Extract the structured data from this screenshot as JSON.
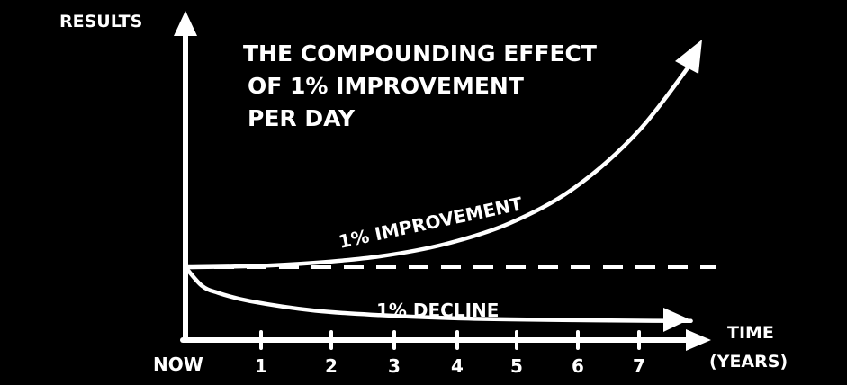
{
  "chart_data": {
    "type": "line",
    "title": "THE COMPOUNDING EFFECT OF 1% IMPROVEMENT PER DAY",
    "title_lines": [
      "THE COMPOUNDING EFFECT",
      "OF 1% IMPROVEMENT",
      "PER DAY"
    ],
    "ylabel": "RESULTS",
    "xlabel": [
      "TIME",
      "(YEARS)"
    ],
    "x_origin_label": "NOW",
    "x_ticks": [
      "1",
      "2",
      "3",
      "4",
      "5",
      "6",
      "7"
    ],
    "xlim": [
      0,
      8
    ],
    "grid": false,
    "colors": {
      "background": "#000000",
      "ink": "#ffffff"
    },
    "series": [
      {
        "name": "1% IMPROVEMENT",
        "x": [
          0,
          1,
          2,
          3,
          4,
          5,
          6,
          7,
          7.9
        ],
        "y": [
          1.0,
          1.03,
          1.13,
          1.32,
          1.68,
          2.3,
          3.35,
          5.05,
          7.3
        ]
      },
      {
        "name": "1% DECLINE",
        "x": [
          0,
          0.25,
          0.5,
          1,
          2,
          3,
          4,
          5,
          6,
          7,
          7.8
        ],
        "y": [
          1.0,
          0.67,
          0.54,
          0.39,
          0.22,
          0.14,
          0.09,
          0.065,
          0.05,
          0.04,
          0.035
        ]
      }
    ],
    "baseline": {
      "y": 1.0,
      "style": "dashed"
    }
  }
}
